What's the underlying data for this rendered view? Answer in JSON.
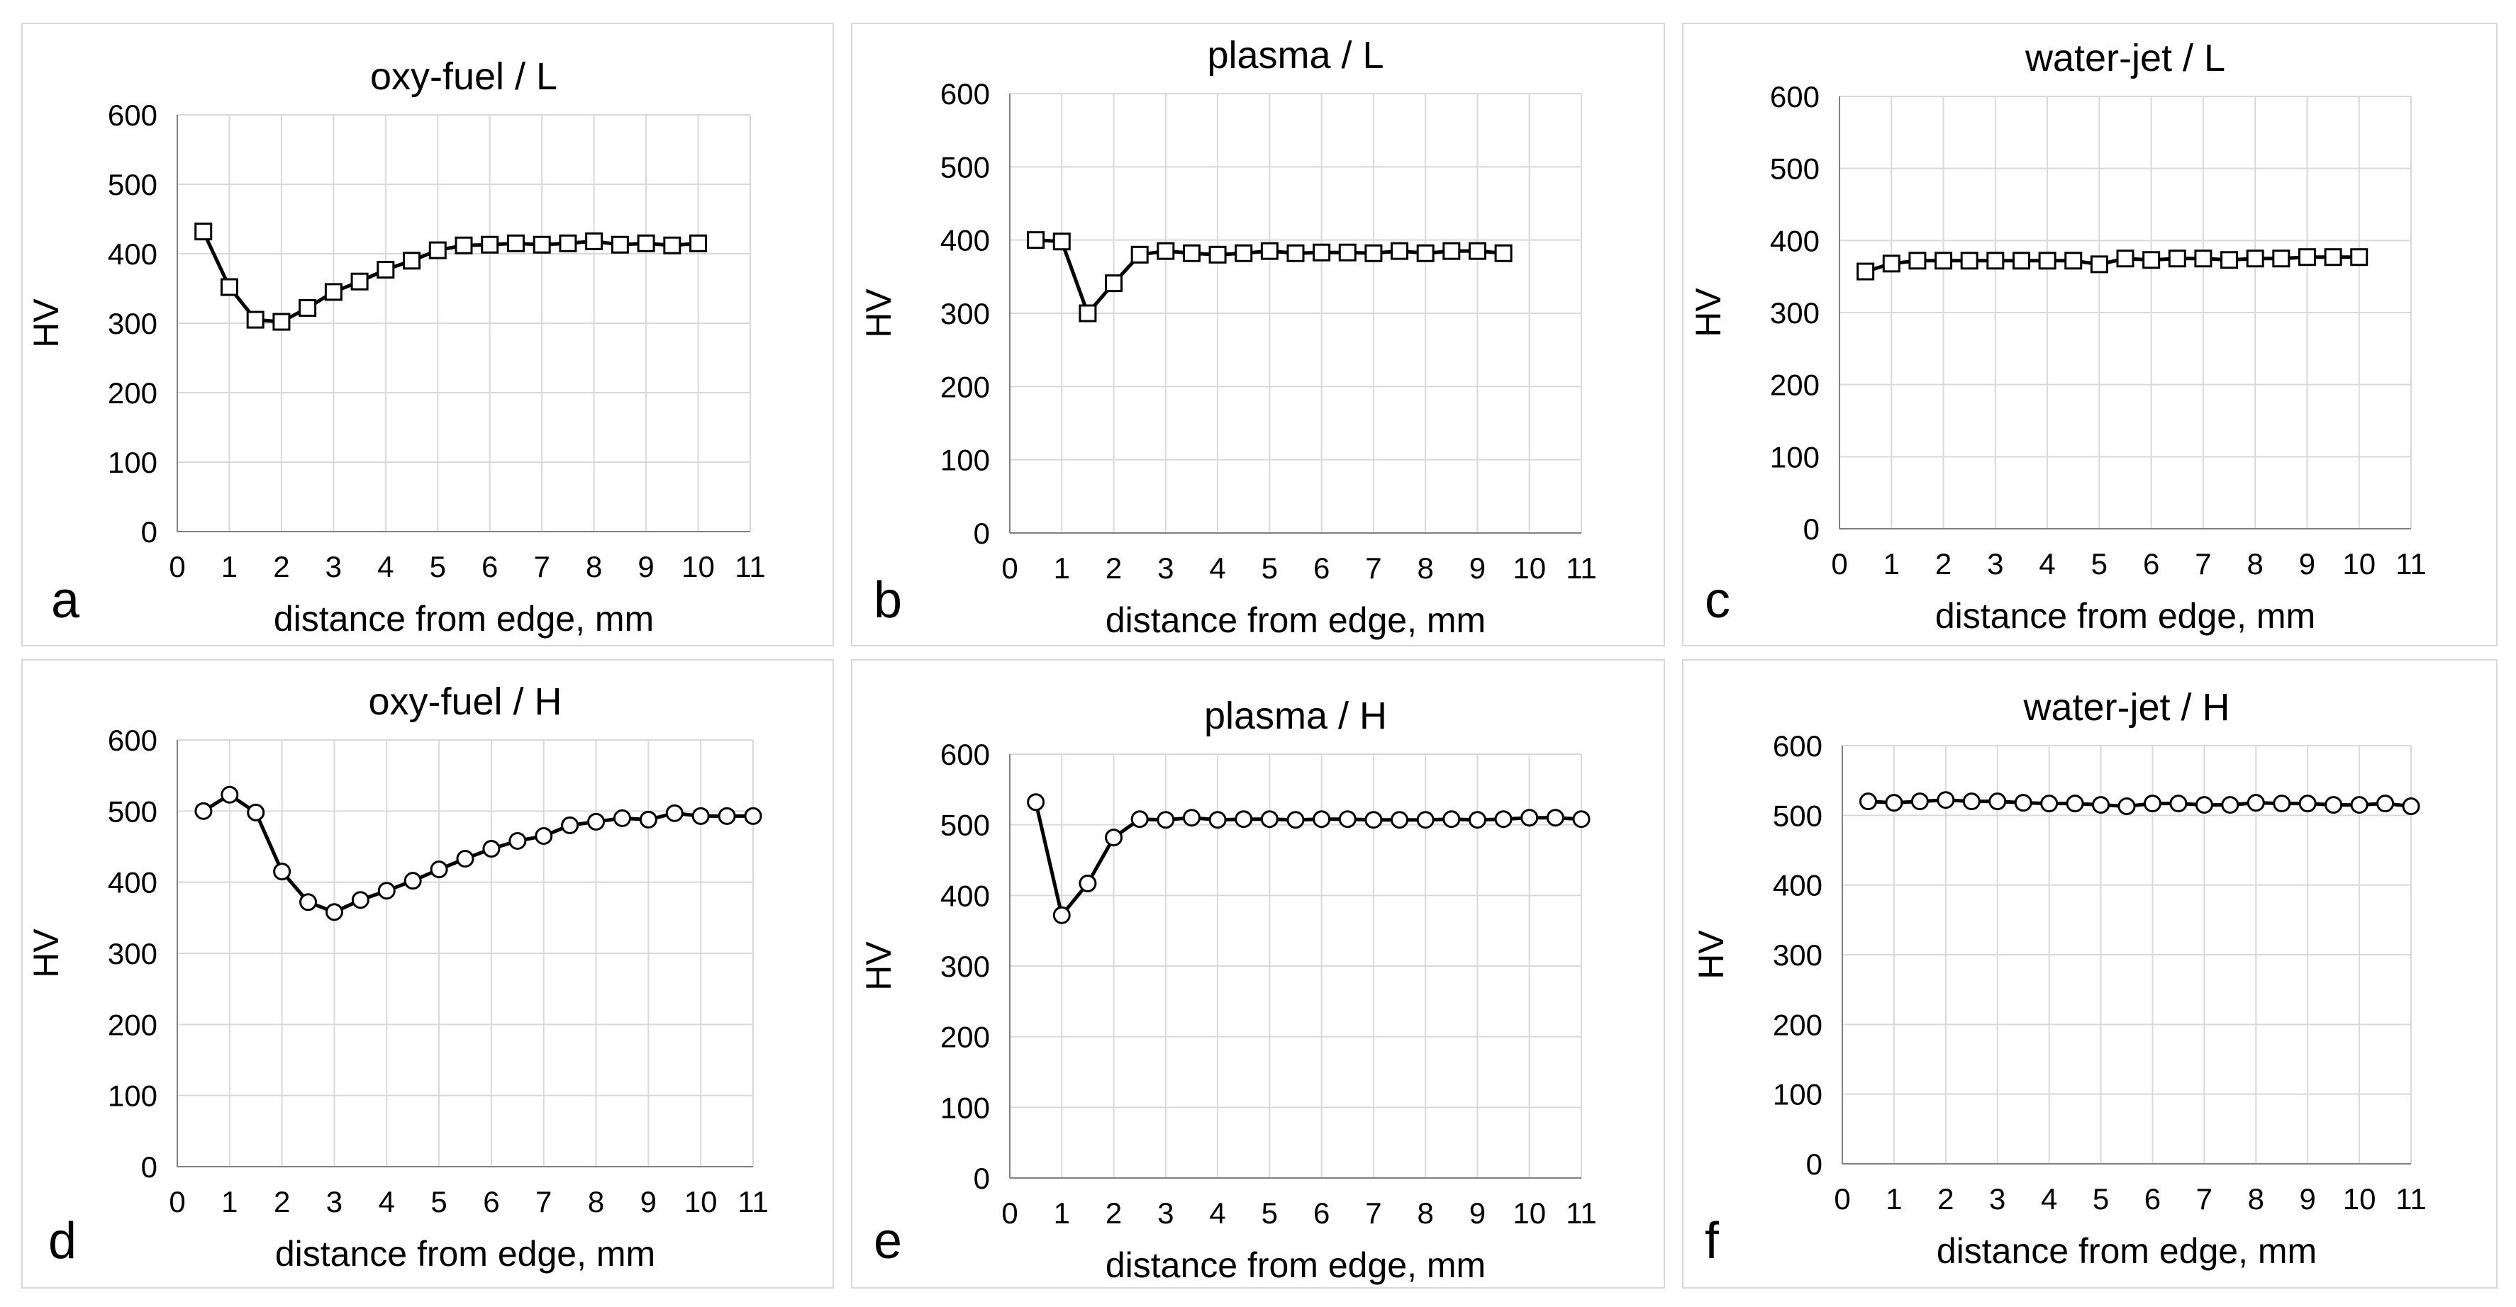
{
  "chart_data": [
    {
      "type": "line",
      "panel_letter": "a",
      "title": "oxy-fuel  / L",
      "xlabel": "distance from edge, mm",
      "ylabel": "HV",
      "xlim": [
        0,
        11
      ],
      "ylim": [
        0,
        600
      ],
      "xticks": [
        "0",
        "1",
        "2",
        "3",
        "4",
        "5",
        "6",
        "7",
        "8",
        "9",
        "10",
        "11"
      ],
      "yticks": [
        "0",
        "100",
        "200",
        "300",
        "400",
        "500",
        "600"
      ],
      "marker": "square",
      "grid": true,
      "x": [
        0.5,
        1,
        1.5,
        2,
        2.5,
        3,
        3.5,
        4,
        4.5,
        5,
        5.5,
        6,
        6.5,
        7,
        7.5,
        8,
        8.5,
        9,
        9.5,
        10
      ],
      "values": [
        432,
        352,
        305,
        302,
        322,
        345,
        360,
        377,
        390,
        405,
        412,
        413,
        415,
        413,
        415,
        418,
        413,
        415,
        412,
        415
      ]
    },
    {
      "type": "line",
      "panel_letter": "b",
      "title": "plasma  / L",
      "xlabel": "distance from edge, mm",
      "ylabel": "HV",
      "xlim": [
        0,
        11
      ],
      "ylim": [
        0,
        600
      ],
      "xticks": [
        "0",
        "1",
        "2",
        "3",
        "4",
        "5",
        "6",
        "7",
        "8",
        "9",
        "10",
        "11"
      ],
      "yticks": [
        "0",
        "100",
        "200",
        "300",
        "400",
        "500",
        "600"
      ],
      "marker": "square",
      "grid": true,
      "x": [
        0.5,
        1,
        1.5,
        2,
        2.5,
        3,
        3.5,
        4,
        4.5,
        5,
        5.5,
        6,
        6.5,
        7,
        7.5,
        8,
        8.5,
        9,
        9.5
      ],
      "values": [
        400,
        398,
        300,
        341,
        380,
        385,
        382,
        380,
        382,
        385,
        382,
        383,
        383,
        382,
        385,
        382,
        385,
        385,
        382
      ]
    },
    {
      "type": "line",
      "panel_letter": "c",
      "title": "water-jet / L",
      "xlabel": "distance from edge, mm",
      "ylabel": "HV",
      "xlim": [
        0,
        11
      ],
      "ylim": [
        0,
        600
      ],
      "xticks": [
        "0",
        "1",
        "2",
        "3",
        "4",
        "5",
        "6",
        "7",
        "8",
        "9",
        "10",
        "11"
      ],
      "yticks": [
        "0",
        "100",
        "200",
        "300",
        "400",
        "500",
        "600"
      ],
      "marker": "square",
      "grid": true,
      "x": [
        0.5,
        1,
        1.5,
        2,
        2.5,
        3,
        3.5,
        4,
        4.5,
        5,
        5.5,
        6,
        6.5,
        7,
        7.5,
        8,
        8.5,
        9,
        9.5,
        10
      ],
      "values": [
        357,
        368,
        372,
        372,
        372,
        372,
        372,
        372,
        372,
        367,
        375,
        373,
        375,
        375,
        373,
        375,
        375,
        377,
        377,
        377
      ]
    },
    {
      "type": "line",
      "panel_letter": "d",
      "title": "oxy-fuel  / H",
      "xlabel": "distance from edge, mm",
      "ylabel": "HV",
      "xlim": [
        0,
        11
      ],
      "ylim": [
        0,
        600
      ],
      "xticks": [
        "0",
        "1",
        "2",
        "3",
        "4",
        "5",
        "6",
        "7",
        "8",
        "9",
        "10",
        "11"
      ],
      "yticks": [
        "0",
        "100",
        "200",
        "300",
        "400",
        "500",
        "600"
      ],
      "marker": "circle",
      "grid": true,
      "x": [
        0.5,
        1,
        1.5,
        2,
        2.5,
        3,
        3.5,
        4,
        4.5,
        5,
        5.5,
        6,
        6.5,
        7,
        7.5,
        8,
        8.5,
        9,
        9.5,
        10,
        10.5,
        11
      ],
      "values": [
        500,
        523,
        498,
        415,
        372,
        358,
        375,
        388,
        402,
        418,
        433,
        447,
        458,
        465,
        480,
        485,
        490,
        488,
        497,
        493,
        493,
        493
      ]
    },
    {
      "type": "line",
      "panel_letter": "e",
      "title": "plasma  / H",
      "xlabel": "distance from edge, mm",
      "ylabel": "HV",
      "xlim": [
        0,
        11
      ],
      "ylim": [
        0,
        600
      ],
      "xticks": [
        "0",
        "1",
        "2",
        "3",
        "4",
        "5",
        "6",
        "7",
        "8",
        "9",
        "10",
        "11"
      ],
      "yticks": [
        "0",
        "100",
        "200",
        "300",
        "400",
        "500",
        "600"
      ],
      "marker": "circle",
      "grid": true,
      "x": [
        0.5,
        1,
        1.5,
        2,
        2.5,
        3,
        3.5,
        4,
        4.5,
        5,
        5.5,
        6,
        6.5,
        7,
        7.5,
        8,
        8.5,
        9,
        9.5,
        10,
        10.5,
        11
      ],
      "values": [
        532,
        372,
        417,
        482,
        508,
        507,
        510,
        507,
        508,
        508,
        507,
        508,
        508,
        507,
        507,
        507,
        508,
        507,
        508,
        510,
        510,
        508
      ]
    },
    {
      "type": "line",
      "panel_letter": "f",
      "title": "water-jet  / H",
      "xlabel": "distance from edge, mm",
      "ylabel": "HV",
      "xlim": [
        0,
        11
      ],
      "ylim": [
        0,
        600
      ],
      "xticks": [
        "0",
        "1",
        "2",
        "3",
        "4",
        "5",
        "6",
        "7",
        "8",
        "9",
        "10",
        "11"
      ],
      "yticks": [
        "0",
        "100",
        "200",
        "300",
        "400",
        "500",
        "600"
      ],
      "marker": "circle",
      "grid": true,
      "x": [
        0.5,
        1,
        1.5,
        2,
        2.5,
        3,
        3.5,
        4,
        4.5,
        5,
        5.5,
        6,
        6.5,
        7,
        7.5,
        8,
        8.5,
        9,
        9.5,
        10,
        10.5,
        11
      ],
      "values": [
        520,
        518,
        520,
        522,
        520,
        520,
        518,
        517,
        517,
        515,
        513,
        517,
        517,
        515,
        515,
        518,
        517,
        517,
        515,
        515,
        517,
        513
      ]
    }
  ]
}
